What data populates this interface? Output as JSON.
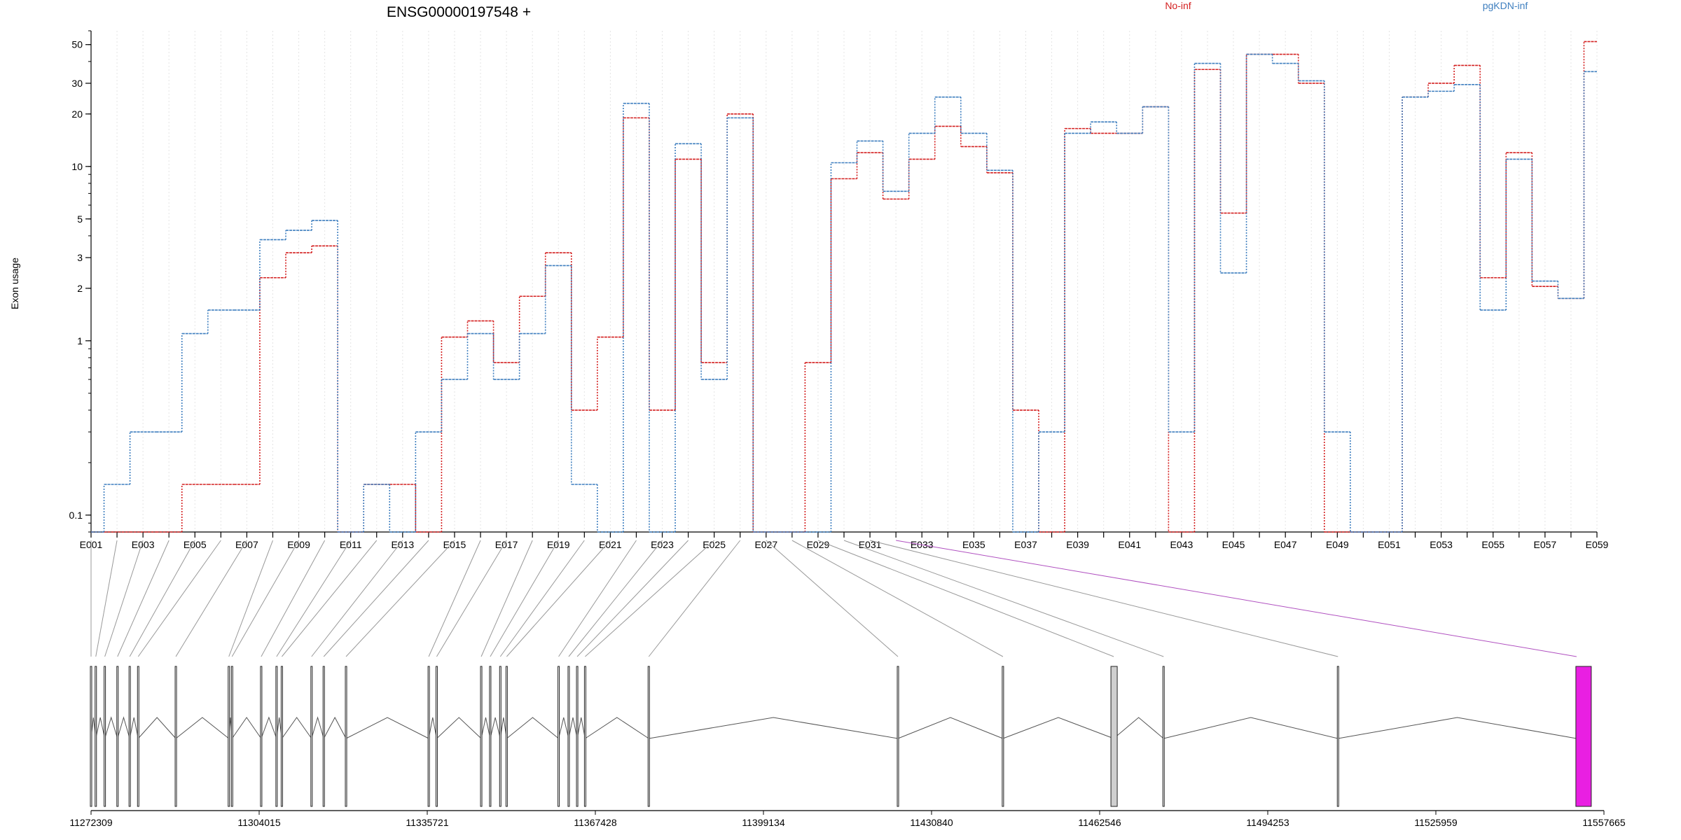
{
  "chart_data": {
    "type": "line",
    "title": "ENSG00000197548 +",
    "ylabel": "Exon usage",
    "yscale": "log",
    "ylim": [
      0.08,
      60
    ],
    "yticks": [
      0.1,
      1,
      2,
      3,
      5,
      10,
      20,
      30,
      50
    ],
    "ytick_labels": [
      "0.1",
      "1",
      "2",
      "3",
      "5",
      "10",
      "20",
      "30",
      "50"
    ],
    "legend_position": "top",
    "grid": true,
    "categories": [
      "E001",
      "E002",
      "E003",
      "E004",
      "E005",
      "E006",
      "E007",
      "E008",
      "E009",
      "E010",
      "E011",
      "E012",
      "E013",
      "E014",
      "E015",
      "E016",
      "E017",
      "E018",
      "E019",
      "E020",
      "E021",
      "E022",
      "E023",
      "E024",
      "E025",
      "E026",
      "E027",
      "E028",
      "E029",
      "E030",
      "E031",
      "E032",
      "E033",
      "E034",
      "E035",
      "E036",
      "E037",
      "E038",
      "E039",
      "E040",
      "E041",
      "E042",
      "E043",
      "E044",
      "E045",
      "E046",
      "E047",
      "E048",
      "E049",
      "E050",
      "E051",
      "E052",
      "E053",
      "E054",
      "E055",
      "E056",
      "E057",
      "E058",
      "E059"
    ],
    "tick_labels": [
      "E001",
      "E003",
      "E005",
      "E007",
      "E009",
      "E011",
      "E013",
      "E015",
      "E017",
      "E019",
      "E021",
      "E023",
      "E025",
      "E027",
      "E029",
      "E031",
      "E033",
      "E035",
      "E037",
      "E039",
      "E041",
      "E043",
      "E045",
      "E047",
      "E049",
      "E051",
      "E053",
      "E055",
      "E057",
      "E059"
    ],
    "series": [
      {
        "name": "No-inf",
        "color": "#d42020",
        "values": [
          0.08,
          0.08,
          0.08,
          0.08,
          0.15,
          0.15,
          0.15,
          2.3,
          3.2,
          3.5,
          0.08,
          0.15,
          0.15,
          0.08,
          1.05,
          1.3,
          0.75,
          1.8,
          3.2,
          0.4,
          1.05,
          19,
          0.4,
          11,
          0.75,
          20,
          0.08,
          0.08,
          0.75,
          8.5,
          12,
          6.5,
          11,
          17,
          13,
          9.2,
          0.4,
          0.08,
          16.5,
          15.5,
          15.5,
          22,
          0.08,
          36,
          5.4,
          44,
          44,
          30,
          0.08,
          0.08,
          0.08,
          25,
          30,
          38,
          2.3,
          12,
          2.05,
          1.75,
          52
        ]
      },
      {
        "name": "pgKDN-inf",
        "color": "#3f7fbf",
        "values": [
          0.08,
          0.15,
          0.3,
          0.3,
          1.1,
          1.5,
          1.5,
          3.8,
          4.3,
          4.9,
          0.08,
          0.15,
          0.08,
          0.3,
          0.6,
          1.1,
          0.6,
          1.1,
          2.7,
          0.15,
          0.08,
          23,
          0.08,
          13.5,
          0.6,
          19,
          0.08,
          0.08,
          0.08,
          10.5,
          14,
          7.2,
          15.5,
          25,
          15.5,
          9.5,
          0.08,
          0.3,
          15.5,
          18,
          15.5,
          22,
          0.3,
          39,
          2.45,
          44,
          39,
          31,
          0.3,
          0.08,
          0.08,
          25,
          27,
          29.5,
          1.5,
          11,
          2.2,
          1.75,
          35
        ]
      }
    ],
    "gene_model": {
      "coord_ticks": [
        "11272309",
        "11304015",
        "11335721",
        "11367428",
        "11399134",
        "11430840",
        "11462546",
        "11494253",
        "11525959",
        "11557665"
      ],
      "exons_x": [
        11272309,
        11273200,
        11274900,
        11277300,
        11279600,
        11281200,
        11288300,
        11298300,
        11298900,
        11304400,
        11307300,
        11308300,
        11313900,
        11316200,
        11320400,
        11336000,
        11337500,
        11345900,
        11347600,
        11349500,
        11350700,
        11360500,
        11362400,
        11364000,
        11365500,
        11377500,
        11424500,
        11444300,
        11465200,
        11474600,
        11507500,
        11552500
      ],
      "exon_types": [
        "n",
        "n",
        "n",
        "n",
        "n",
        "n",
        "n",
        "n",
        "n",
        "n",
        "n",
        "n",
        "n",
        "n",
        "n",
        "n",
        "n",
        "n",
        "n",
        "n",
        "n",
        "n",
        "n",
        "n",
        "n",
        "n",
        "n",
        "n",
        "g",
        "n",
        "n",
        "m"
      ]
    }
  }
}
